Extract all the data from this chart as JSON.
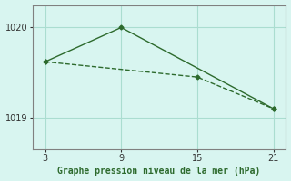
{
  "line1_x": [
    3,
    9,
    21
  ],
  "line1_y": [
    1019.62,
    1020.0,
    1019.1
  ],
  "line2_x": [
    3,
    15,
    21
  ],
  "line2_y": [
    1019.62,
    1019.45,
    1019.1
  ],
  "line_color": "#2d6a2d",
  "bg_color": "#d8f5f0",
  "grid_color": "#aaddd0",
  "xlabel": "Graphe pression niveau de la mer (hPa)",
  "xticks": [
    3,
    9,
    15,
    21
  ],
  "yticks": [
    1019,
    1020
  ],
  "ylim": [
    1018.65,
    1020.25
  ],
  "xlim": [
    2,
    22
  ],
  "marker": "D",
  "markersize": 2.5
}
